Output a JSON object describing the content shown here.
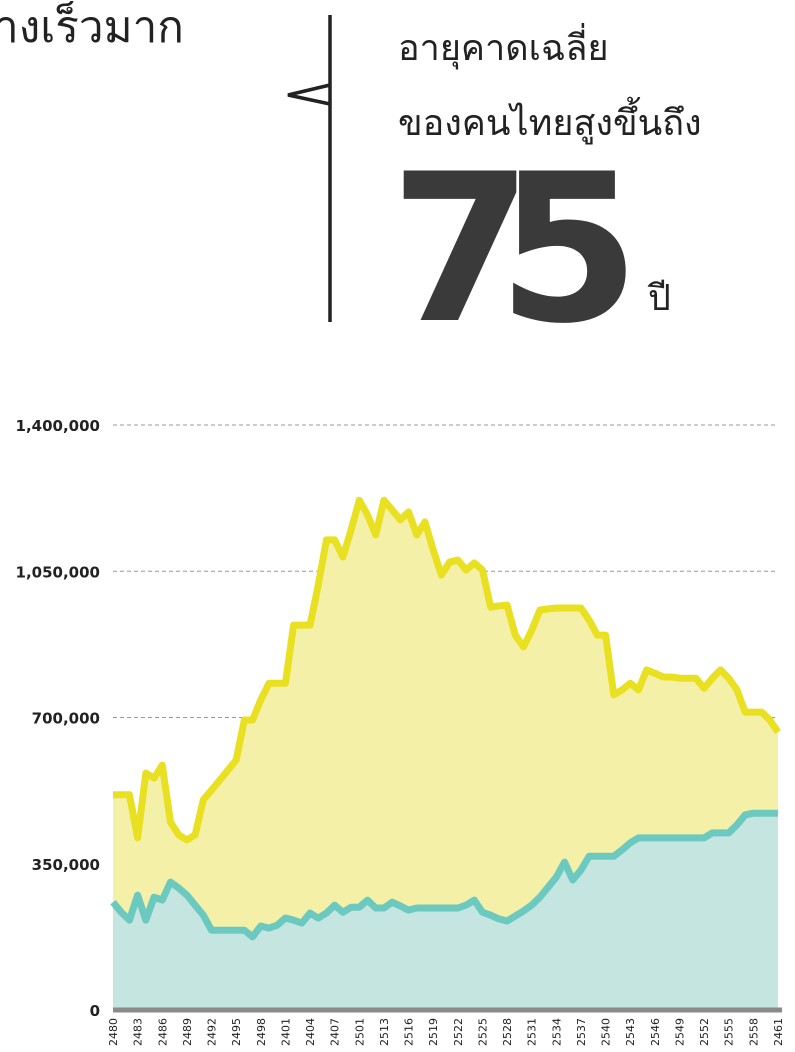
{
  "header": {
    "partial_title": "างเร็วมาก",
    "line1": "อายุคาดเฉลี่ย",
    "line2": "ของคนไทยสูงขึ้นถึง",
    "number": "75",
    "unit": "ปี"
  },
  "chart_data": {
    "type": "area",
    "categories": [
      "2480",
      null,
      null,
      "2483",
      null,
      null,
      "2486",
      null,
      null,
      "2489",
      null,
      null,
      "2492",
      null,
      null,
      "2495",
      null,
      null,
      "2498",
      null,
      null,
      "2401",
      null,
      null,
      "2404",
      null,
      null,
      "2407",
      null,
      null,
      "2501",
      null,
      null,
      "2513",
      null,
      null,
      "2516",
      null,
      null,
      "2519",
      null,
      null,
      "2522",
      null,
      null,
      "2525",
      null,
      null,
      "2528",
      null,
      null,
      "2531",
      null,
      null,
      "2534",
      null,
      null,
      "2537",
      null,
      null,
      "2540",
      null,
      null,
      "2543",
      null,
      null,
      "2546",
      null,
      null,
      "2549",
      null,
      null,
      "2552",
      null,
      null,
      "2555",
      null,
      null,
      "2558",
      null,
      null,
      "2461"
    ],
    "series": [
      {
        "color": "#e8e020",
        "fill": "#f5f0a8",
        "values": [
          515000,
          515000,
          515000,
          412000,
          567000,
          555000,
          586000,
          450000,
          419000,
          407000,
          419000,
          503000,
          526000,
          550000,
          574000,
          598000,
          694000,
          694000,
          742000,
          782000,
          782000,
          782000,
          921000,
          921000,
          921000,
          1017000,
          1125000,
          1125000,
          1084000,
          1149000,
          1220000,
          1185000,
          1137000,
          1220000,
          1197000,
          1173000,
          1192000,
          1137000,
          1168000,
          1101000,
          1041000,
          1072000,
          1077000,
          1053000,
          1070000,
          1053000,
          964000,
          967000,
          969000,
          897000,
          869000,
          909000,
          957000,
          960000,
          962000,
          962000,
          962000,
          962000,
          933000,
          897000,
          897000,
          754000,
          766000,
          782000,
          766000,
          814000,
          806000,
          797000,
          797000,
          794000,
          794000,
          794000,
          770000,
          794000,
          814000,
          794000,
          766000,
          713000,
          713000,
          713000,
          694000,
          665000
        ]
      },
      {
        "color": "#6cc9bf",
        "fill": "#c5e5e0",
        "values": [
          258000,
          234000,
          215000,
          275000,
          215000,
          270000,
          263000,
          306000,
          292000,
          275000,
          251000,
          227000,
          191000,
          191000,
          191000,
          191000,
          191000,
          175000,
          201000,
          196000,
          203000,
          220000,
          215000,
          208000,
          232000,
          220000,
          232000,
          251000,
          234000,
          246000,
          246000,
          263000,
          244000,
          244000,
          258000,
          249000,
          239000,
          244000,
          244000,
          244000,
          244000,
          244000,
          244000,
          251000,
          263000,
          234000,
          227000,
          218000,
          213000,
          225000,
          237000,
          251000,
          270000,
          294000,
          318000,
          354000,
          311000,
          335000,
          368000,
          368000,
          368000,
          368000,
          383000,
          400000,
          412000,
          412000,
          412000,
          412000,
          412000,
          412000,
          412000,
          412000,
          412000,
          424000,
          424000,
          424000,
          443000,
          467000,
          471000,
          471000,
          471000,
          471000
        ]
      }
    ],
    "ylim": [
      0,
      1400000
    ],
    "yticks": [
      0,
      {
        "value": 350000,
        "label": "350,000"
      },
      {
        "value": 700000,
        "label": "700,000"
      },
      {
        "value": 1050000,
        "label": "1,050,000"
      },
      {
        "value": 1400000,
        "label": "1,400,000"
      }
    ],
    "grid": true
  }
}
